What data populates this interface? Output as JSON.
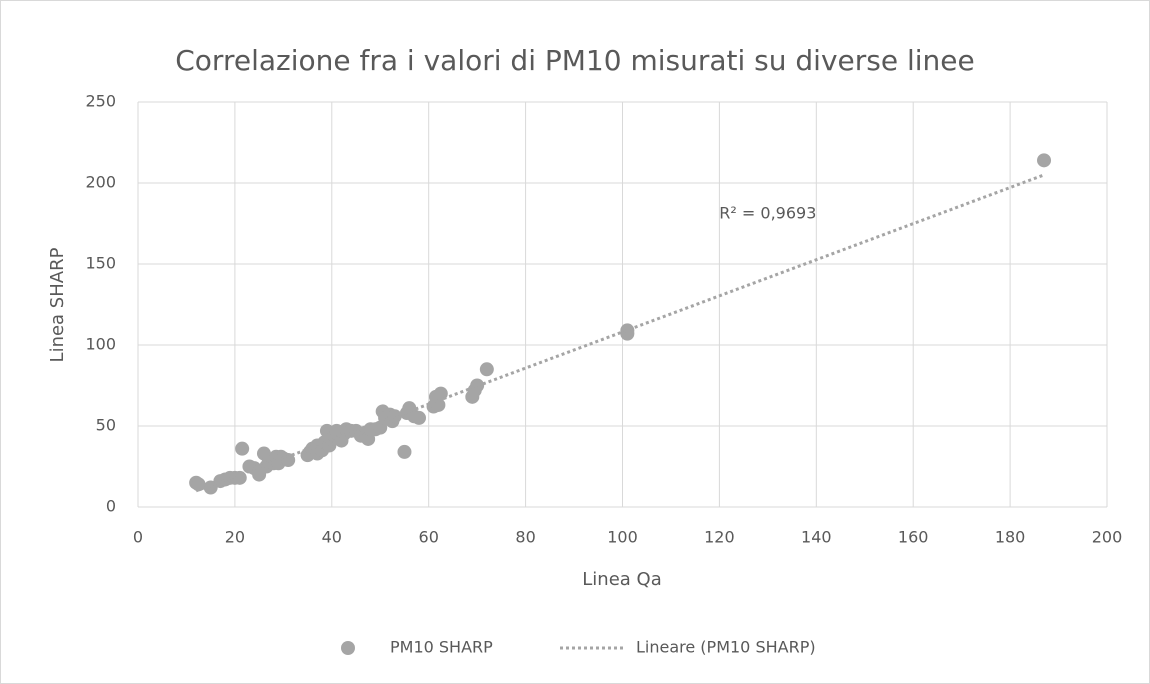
{
  "chart_data": {
    "type": "scatter",
    "title": "Correlazione fra i valori di PM10 misurati su diverse linee",
    "xlabel": "Linea Qa",
    "ylabel": "Linea SHARP",
    "xlim": [
      0,
      200
    ],
    "ylim": [
      0,
      250
    ],
    "xticks": [
      0,
      20,
      40,
      60,
      80,
      100,
      120,
      140,
      160,
      180,
      200
    ],
    "yticks": [
      0,
      50,
      100,
      150,
      200,
      250
    ],
    "grid": true,
    "legend": "bottom",
    "series": [
      {
        "name": "PM10 SHARP",
        "color": "#a5a5a5",
        "x": [
          12,
          12.5,
          15,
          17,
          18,
          19,
          20,
          21,
          21.5,
          23,
          24,
          25,
          25,
          26,
          26.5,
          27,
          28,
          28.5,
          29,
          29.5,
          30,
          31,
          35,
          35.5,
          36,
          37,
          37,
          38,
          38.5,
          39,
          39.5,
          40,
          40.5,
          41,
          42,
          42.5,
          43,
          44,
          45,
          46,
          47,
          47.5,
          48,
          49,
          50,
          50.5,
          51,
          52,
          52.5,
          53,
          55,
          55.5,
          56,
          57,
          58,
          61,
          61.5,
          62,
          62.5,
          69,
          69.5,
          70,
          72,
          101,
          101,
          187
        ],
        "values": [
          15,
          14,
          12,
          16,
          17,
          18,
          18,
          18,
          36,
          25,
          24,
          20,
          22,
          33,
          25,
          28,
          27,
          31,
          27,
          31,
          30,
          29,
          32,
          34,
          36,
          38,
          33,
          35,
          40,
          47,
          38,
          42,
          44,
          47,
          41,
          45,
          48,
          47,
          47,
          44,
          46,
          42,
          48,
          48,
          49,
          59,
          55,
          57,
          53,
          56,
          34,
          58,
          61,
          56,
          55,
          62,
          68,
          63,
          70,
          68,
          72,
          75,
          85,
          109,
          107,
          214
        ]
      }
    ],
    "trendline": {
      "name": "Lineare (PM10 SHARP)",
      "color": "#a5a5a5",
      "x": [
        12,
        187
      ],
      "values": [
        10,
        205
      ]
    },
    "annotation": {
      "text": "R² = 0,9693",
      "x": 130,
      "y": 181
    }
  }
}
